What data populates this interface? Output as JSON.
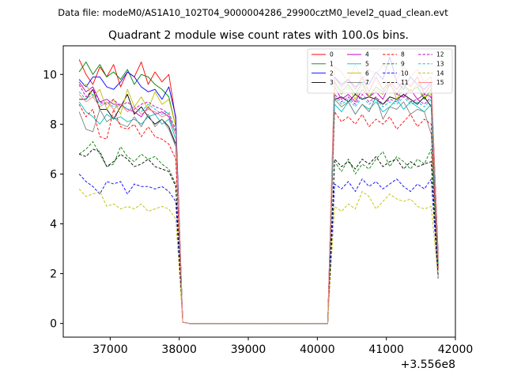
{
  "chart_data": {
    "type": "line",
    "suptitle": "Data file: modeM0/AS1A10_102T04_9000004286_29900cztM0_level2_quad_clean.evt",
    "title": "Quadrant 2 module wise count rates with 100.0s bins.",
    "xlabel": "",
    "ylabel": "",
    "x_offset_label": "+3.556e8",
    "xlim": [
      36320,
      42000
    ],
    "ylim": [
      -0.55,
      11.15
    ],
    "x_ticks": [
      37000,
      38000,
      39000,
      40000,
      41000,
      42000
    ],
    "x_tick_labels": [
      "37000",
      "38000",
      "39000",
      "40000",
      "41000",
      "42000"
    ],
    "y_ticks": [
      0,
      2,
      4,
      6,
      8,
      10
    ],
    "y_tick_labels": [
      "0",
      "2",
      "4",
      "6",
      "8",
      "10"
    ],
    "x": [
      36550,
      36650,
      36750,
      36850,
      36950,
      37050,
      37150,
      37250,
      37350,
      37450,
      37550,
      37650,
      37750,
      37850,
      37950,
      38050,
      38150,
      38250,
      38350,
      38450,
      38550,
      38650,
      38750,
      38850,
      38950,
      39050,
      39150,
      39250,
      39350,
      39450,
      39550,
      39650,
      39750,
      39850,
      39950,
      40050,
      40150,
      40250,
      40350,
      40450,
      40550,
      40650,
      40750,
      40850,
      40950,
      41050,
      41150,
      41250,
      41350,
      41450,
      41550,
      41650,
      41750
    ],
    "legend": {
      "location": "upper right",
      "columns": 4
    },
    "series": [
      {
        "name": "0",
        "color": "#ff0000",
        "dash": "solid",
        "values": [
          10.6,
          10.0,
          9.6,
          10.3,
          9.9,
          10.4,
          9.5,
          10.1,
          9.9,
          10.5,
          9.6,
          10.1,
          9.7,
          10.0,
          8.2,
          0.05,
          0.0,
          0.0,
          0.0,
          0.0,
          0.0,
          0.0,
          0.0,
          0.0,
          0.0,
          0.0,
          0.0,
          0.0,
          0.0,
          0.0,
          0.0,
          0.0,
          0.0,
          0.0,
          0.0,
          0.0,
          0.0,
          9.9,
          9.5,
          9.8,
          9.4,
          9.9,
          9.3,
          9.9,
          9.4,
          9.7,
          9.4,
          9.8,
          9.5,
          9.9,
          9.2,
          9.6,
          2.8
        ]
      },
      {
        "name": "1",
        "color": "#008000",
        "dash": "solid",
        "values": [
          10.1,
          10.5,
          10.0,
          10.4,
          9.9,
          10.1,
          9.8,
          10.2,
          9.6,
          10.0,
          9.9,
          9.6,
          9.4,
          9.1,
          7.9,
          0.05,
          0.0,
          0.0,
          0.0,
          0.0,
          0.0,
          0.0,
          0.0,
          0.0,
          0.0,
          0.0,
          0.0,
          0.0,
          0.0,
          0.0,
          0.0,
          0.0,
          0.0,
          0.0,
          0.0,
          0.0,
          0.0,
          9.7,
          9.3,
          9.6,
          9.2,
          9.7,
          9.1,
          9.5,
          9.3,
          9.6,
          9.2,
          9.6,
          9.3,
          9.5,
          9.0,
          9.4,
          2.6
        ]
      },
      {
        "name": "2",
        "color": "#0000ff",
        "dash": "solid",
        "values": [
          9.8,
          9.5,
          9.9,
          9.9,
          9.5,
          9.4,
          9.7,
          10.1,
          9.9,
          9.5,
          9.3,
          9.4,
          9.0,
          9.5,
          8.3,
          0.05,
          0.0,
          0.0,
          0.0,
          0.0,
          0.0,
          0.0,
          0.0,
          0.0,
          0.0,
          0.0,
          0.0,
          0.0,
          0.0,
          0.0,
          0.0,
          0.0,
          0.0,
          0.0,
          0.0,
          0.0,
          0.0,
          9.9,
          9.6,
          9.8,
          9.5,
          9.7,
          9.6,
          10.1,
          9.8,
          10.7,
          9.7,
          9.4,
          9.9,
          9.6,
          9.4,
          9.7,
          2.7
        ]
      },
      {
        "name": "3",
        "color": "#000000",
        "dash": "solid",
        "values": [
          9.0,
          9.0,
          9.4,
          8.6,
          8.6,
          8.2,
          8.7,
          9.2,
          8.4,
          8.7,
          8.3,
          8.0,
          8.2,
          7.9,
          7.2,
          0.05,
          0.0,
          0.0,
          0.0,
          0.0,
          0.0,
          0.0,
          0.0,
          0.0,
          0.0,
          0.0,
          0.0,
          0.0,
          0.0,
          0.0,
          0.0,
          0.0,
          0.0,
          0.0,
          0.0,
          0.0,
          0.0,
          9.0,
          9.1,
          8.9,
          9.2,
          9.0,
          9.1,
          9.0,
          8.8,
          9.1,
          9.0,
          9.2,
          9.0,
          8.8,
          9.1,
          8.7,
          2.3
        ]
      },
      {
        "name": "4",
        "color": "#bf00bf",
        "dash": "solid",
        "values": [
          9.7,
          9.3,
          9.5,
          8.9,
          9.0,
          8.8,
          8.8,
          8.6,
          8.5,
          8.3,
          8.7,
          8.4,
          8.5,
          8.3,
          7.6,
          0.05,
          0.0,
          0.0,
          0.0,
          0.0,
          0.0,
          0.0,
          0.0,
          0.0,
          0.0,
          0.0,
          0.0,
          0.0,
          0.0,
          0.0,
          0.0,
          0.0,
          0.0,
          0.0,
          0.0,
          0.0,
          0.0,
          9.5,
          9.0,
          9.2,
          8.9,
          9.4,
          9.1,
          9.3,
          9.0,
          9.6,
          9.2,
          9.1,
          9.4,
          9.0,
          9.2,
          9.1,
          2.5
        ]
      },
      {
        "name": "5",
        "color": "#00bfbf",
        "dash": "solid",
        "values": [
          8.9,
          8.5,
          8.3,
          8.0,
          8.4,
          8.2,
          8.3,
          8.1,
          8.2,
          8.0,
          8.3,
          8.4,
          8.0,
          8.2,
          7.4,
          0.05,
          0.0,
          0.0,
          0.0,
          0.0,
          0.0,
          0.0,
          0.0,
          0.0,
          0.0,
          0.0,
          0.0,
          0.0,
          0.0,
          0.0,
          0.0,
          0.0,
          0.0,
          0.0,
          0.0,
          0.0,
          0.0,
          8.8,
          8.5,
          8.9,
          8.4,
          8.8,
          8.6,
          8.9,
          8.5,
          8.7,
          9.0,
          8.6,
          8.9,
          8.7,
          8.5,
          8.8,
          2.4
        ]
      },
      {
        "name": "6",
        "color": "#bfbf00",
        "dash": "solid",
        "values": [
          9.5,
          9.6,
          9.1,
          9.4,
          8.6,
          9.0,
          8.4,
          9.4,
          8.7,
          9.1,
          8.6,
          9.3,
          8.8,
          9.0,
          7.9,
          0.05,
          0.0,
          0.0,
          0.0,
          0.0,
          0.0,
          0.0,
          0.0,
          0.0,
          0.0,
          0.0,
          0.0,
          0.0,
          0.0,
          0.0,
          0.0,
          0.0,
          0.0,
          0.0,
          0.0,
          0.0,
          0.0,
          9.6,
          9.2,
          9.5,
          9.0,
          9.6,
          9.1,
          9.4,
          9.2,
          9.7,
          9.0,
          9.5,
          9.3,
          9.6,
          9.1,
          9.2,
          2.6
        ]
      },
      {
        "name": "7",
        "color": "#808080",
        "dash": "solid",
        "values": [
          8.5,
          7.8,
          7.7,
          8.6,
          8.1,
          8.3,
          8.0,
          7.9,
          8.3,
          7.9,
          8.4,
          7.9,
          8.2,
          7.8,
          7.1,
          0.05,
          0.0,
          0.0,
          0.0,
          0.0,
          0.0,
          0.0,
          0.0,
          0.0,
          0.0,
          0.0,
          0.0,
          0.0,
          0.0,
          0.0,
          0.0,
          0.0,
          0.0,
          0.0,
          0.0,
          0.0,
          0.0,
          9.0,
          8.7,
          8.9,
          8.4,
          8.8,
          8.5,
          9.1,
          8.2,
          8.7,
          8.6,
          8.9,
          8.4,
          8.6,
          8.5,
          7.6,
          2.2
        ]
      },
      {
        "name": "8",
        "color": "#ff0000",
        "dash": "dashed",
        "values": [
          8.8,
          8.3,
          8.6,
          7.5,
          7.4,
          8.6,
          7.9,
          7.8,
          8.0,
          7.5,
          7.9,
          7.5,
          7.4,
          7.2,
          6.6,
          0.05,
          0.0,
          0.0,
          0.0,
          0.0,
          0.0,
          0.0,
          0.0,
          0.0,
          0.0,
          0.0,
          0.0,
          0.0,
          0.0,
          0.0,
          0.0,
          0.0,
          0.0,
          0.0,
          0.0,
          0.0,
          0.0,
          8.5,
          8.1,
          8.3,
          8.0,
          8.4,
          7.9,
          8.2,
          8.0,
          8.3,
          7.8,
          8.1,
          8.4,
          7.9,
          8.2,
          8.0,
          2.2
        ]
      },
      {
        "name": "9",
        "color": "#008000",
        "dash": "dashed",
        "values": [
          6.8,
          7.0,
          7.3,
          6.8,
          6.3,
          6.4,
          7.1,
          6.7,
          6.5,
          6.8,
          6.6,
          6.7,
          6.4,
          6.2,
          5.6,
          0.05,
          0.0,
          0.0,
          0.0,
          0.0,
          0.0,
          0.0,
          0.0,
          0.0,
          0.0,
          0.0,
          0.0,
          0.0,
          0.0,
          0.0,
          0.0,
          0.0,
          0.0,
          0.0,
          0.0,
          0.0,
          0.0,
          6.5,
          6.1,
          6.6,
          6.0,
          6.4,
          6.2,
          6.6,
          6.9,
          6.3,
          6.7,
          6.5,
          6.2,
          6.6,
          6.4,
          7.0,
          1.9
        ]
      },
      {
        "name": "10",
        "color": "#0000ff",
        "dash": "dashed",
        "values": [
          6.0,
          5.7,
          5.5,
          5.2,
          5.7,
          5.6,
          5.7,
          5.2,
          5.6,
          5.5,
          5.5,
          5.4,
          5.5,
          5.3,
          4.9,
          0.05,
          0.0,
          0.0,
          0.0,
          0.0,
          0.0,
          0.0,
          0.0,
          0.0,
          0.0,
          0.0,
          0.0,
          0.0,
          0.0,
          0.0,
          0.0,
          0.0,
          0.0,
          0.0,
          0.0,
          0.0,
          0.0,
          5.6,
          5.4,
          5.7,
          5.3,
          5.8,
          5.5,
          5.7,
          5.4,
          5.6,
          5.8,
          5.5,
          5.3,
          5.6,
          5.4,
          5.8,
          1.8
        ]
      },
      {
        "name": "11",
        "color": "#000000",
        "dash": "dashed",
        "values": [
          6.8,
          6.7,
          7.0,
          6.9,
          6.3,
          6.5,
          6.8,
          6.6,
          6.3,
          6.4,
          6.6,
          6.3,
          6.2,
          6.1,
          5.5,
          0.05,
          0.0,
          0.0,
          0.0,
          0.0,
          0.0,
          0.0,
          0.0,
          0.0,
          0.0,
          0.0,
          0.0,
          0.0,
          0.0,
          0.0,
          0.0,
          0.0,
          0.0,
          0.0,
          0.0,
          0.0,
          0.0,
          6.6,
          6.3,
          6.5,
          6.2,
          6.6,
          6.4,
          6.7,
          6.3,
          6.5,
          6.6,
          6.2,
          6.5,
          6.3,
          6.4,
          6.5,
          1.9
        ]
      },
      {
        "name": "12",
        "color": "#bf00bf",
        "dash": "dashed",
        "values": [
          9.6,
          9.1,
          9.4,
          8.9,
          8.8,
          9.0,
          8.7,
          8.9,
          8.6,
          8.8,
          8.9,
          8.7,
          8.6,
          8.4,
          7.8,
          0.05,
          0.0,
          0.0,
          0.0,
          0.0,
          0.0,
          0.0,
          0.0,
          0.0,
          0.0,
          0.0,
          0.0,
          0.0,
          0.0,
          0.0,
          0.0,
          0.0,
          0.0,
          0.0,
          0.0,
          0.0,
          0.0,
          9.2,
          8.9,
          9.1,
          8.8,
          9.2,
          8.9,
          9.1,
          8.8,
          9.0,
          8.9,
          9.2,
          8.9,
          9.0,
          8.8,
          9.1,
          2.5
        ]
      },
      {
        "name": "13",
        "color": "#00bfbf",
        "dash": "dashed",
        "values": [
          9.3,
          9.0,
          9.2,
          8.8,
          8.9,
          8.7,
          8.8,
          8.6,
          8.7,
          8.5,
          8.8,
          8.6,
          8.4,
          8.5,
          7.7,
          0.05,
          0.0,
          0.0,
          0.0,
          0.0,
          0.0,
          0.0,
          0.0,
          0.0,
          0.0,
          0.0,
          0.0,
          0.0,
          0.0,
          0.0,
          0.0,
          0.0,
          0.0,
          0.0,
          0.0,
          0.0,
          0.0,
          9.1,
          8.8,
          9.0,
          8.7,
          9.1,
          8.8,
          9.0,
          8.7,
          8.9,
          8.8,
          9.1,
          8.8,
          8.9,
          8.7,
          9.0,
          2.4
        ]
      },
      {
        "name": "14",
        "color": "#bfbf00",
        "dash": "dashed",
        "values": [
          5.4,
          5.1,
          5.2,
          5.3,
          4.7,
          4.8,
          4.6,
          4.7,
          4.6,
          4.8,
          4.5,
          4.6,
          4.7,
          4.6,
          4.2,
          0.05,
          0.0,
          0.0,
          0.0,
          0.0,
          0.0,
          0.0,
          0.0,
          0.0,
          0.0,
          0.0,
          0.0,
          0.0,
          0.0,
          0.0,
          0.0,
          0.0,
          0.0,
          0.0,
          0.0,
          0.0,
          0.0,
          4.7,
          4.5,
          4.8,
          4.6,
          5.3,
          5.1,
          4.6,
          4.9,
          5.2,
          5.0,
          4.9,
          5.0,
          4.7,
          4.6,
          4.7,
          1.8
        ]
      },
      {
        "name": "15",
        "color": "#ff7f7f",
        "dash": "solid",
        "values": [
          9.2,
          8.9,
          9.1,
          8.7,
          8.9,
          8.6,
          8.8,
          8.5,
          8.7,
          8.4,
          8.6,
          8.5,
          8.3,
          8.4,
          7.6,
          0.05,
          0.0,
          0.0,
          0.0,
          0.0,
          0.0,
          0.0,
          0.0,
          0.0,
          0.0,
          0.0,
          0.0,
          0.0,
          0.0,
          0.0,
          0.0,
          0.0,
          0.0,
          0.0,
          0.0,
          0.0,
          0.0,
          10.3,
          10.1,
          9.7,
          10.4,
          9.8,
          10.2,
          10.0,
          10.4,
          10.1,
          9.8,
          10.3,
          9.9,
          10.2,
          9.7,
          9.9,
          2.6
        ]
      }
    ]
  }
}
